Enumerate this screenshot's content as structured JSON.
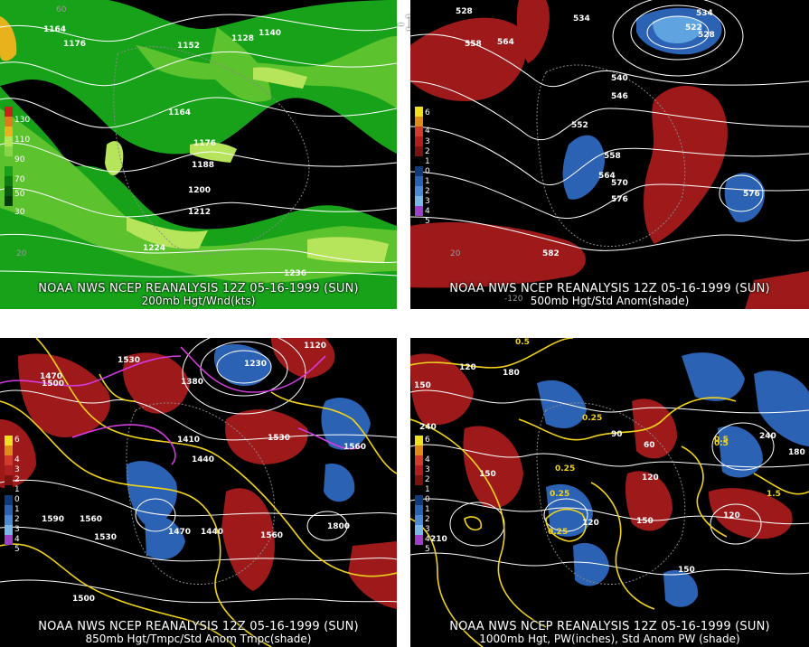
{
  "title": "12Z 05-16-1999 (SUN)",
  "panels": [
    {
      "caption": "NOAA NWS NCEP REANALYSIS 12Z 05-16-1999 (SUN)",
      "subcaption": "200mb Hgt/Wnd(kts)",
      "colorbar": [
        "130",
        "110",
        "90",
        "70",
        "50",
        "30"
      ],
      "contour_labels": [
        "1164",
        "1176",
        "1152",
        "1128",
        "1140",
        "1164",
        "1176",
        "1188",
        "1200",
        "1212",
        "1224",
        "1236",
        "60",
        "20"
      ]
    },
    {
      "caption": "NOAA NWS NCEP REANALYSIS 12Z 05-16-1999 (SUN)",
      "subcaption": "500mb Hgt/Std Anom(shade)",
      "colorbar": [
        "6",
        "4",
        "3",
        "2",
        "1",
        "0",
        "1",
        "2",
        "3",
        "4",
        "5"
      ],
      "contour_labels": [
        "528",
        "564",
        "558",
        "534",
        "522",
        "528",
        "534",
        "540",
        "546",
        "552",
        "558",
        "564",
        "570",
        "576",
        "576",
        "582",
        "20",
        "-120"
      ]
    },
    {
      "caption": "NOAA NWS NCEP REANALYSIS 12Z 05-16-1999 (SUN)",
      "subcaption": "850mb Hgt/Tmpc/Std Anom Tmpc(shade)",
      "colorbar": [
        "6",
        "4",
        "3",
        "2",
        "1",
        "0",
        "1",
        "2",
        "3",
        "4",
        "5"
      ],
      "contour_labels": [
        "1470",
        "1500",
        "1530",
        "1230",
        "1380",
        "1410",
        "1440",
        "1530",
        "1560",
        "1590",
        "1560",
        "1530",
        "1470",
        "1440",
        "1560",
        "1500",
        "1800",
        "1120"
      ]
    },
    {
      "caption": "NOAA NWS NCEP REANALYSIS 12Z 05-16-1999 (SUN)",
      "subcaption": "1000mb Hgt, PW(inches), Std Anom PW (shade)",
      "colorbar": [
        "6",
        "4",
        "3",
        "2",
        "1",
        "0",
        "1",
        "2",
        "3",
        "4",
        "5"
      ],
      "contour_labels": [
        "0.5",
        "120",
        "180",
        "150",
        "240",
        "0.25",
        "0.25",
        "90",
        "60",
        "120",
        "0.5",
        "240",
        "180",
        "150",
        "0.25",
        "120",
        "150",
        "0.25",
        "210",
        "0.5",
        "1.5",
        "120",
        "150"
      ]
    }
  ],
  "colors": {
    "panel_bg": "#000000",
    "wind_light": "#b6e45a",
    "wind_mid": "#5cc22e",
    "wind_dark": "#17a21a",
    "anom_pos": "#9e1a1a",
    "anom_neg": "#2b62b4",
    "temp_contour": "#f0d21b",
    "cold_contour": "#d23bdc",
    "hgt_contour": "#ffffff"
  }
}
